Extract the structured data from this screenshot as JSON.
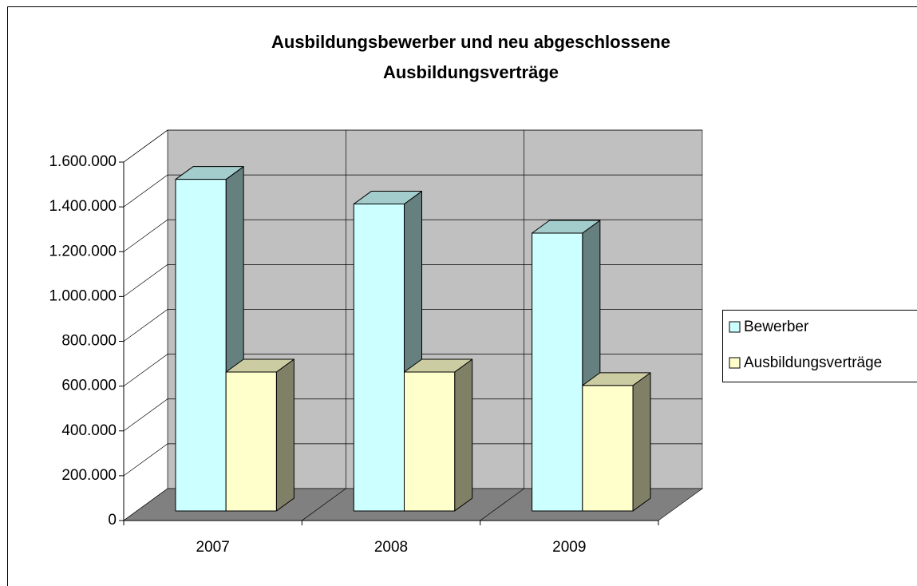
{
  "chart_data": {
    "type": "bar3d",
    "title": "Ausbildungsbewerber und neu abgeschlossene Ausbildungsverträge",
    "categories": [
      "2007",
      "2008",
      "2009"
    ],
    "series": [
      {
        "name": "Bewerber",
        "color": "#ccffff",
        "values": [
          1480000,
          1370000,
          1240000
        ]
      },
      {
        "name": "Ausbildungsverträge",
        "color": "#ffffcc",
        "values": [
          620000,
          620000,
          560000
        ]
      }
    ],
    "ylim": [
      0,
      1600000
    ],
    "yticks": [
      0,
      {
        "value": 200000,
        "label": "200.000"
      },
      {
        "value": 400000,
        "label": "400.000"
      },
      {
        "value": 600000,
        "label": "600.000"
      },
      {
        "value": 800000,
        "label": "800.000"
      },
      {
        "value": 1000000,
        "label": "1.000.000"
      },
      {
        "value": 1200000,
        "label": "1.200.000"
      },
      {
        "value": 1400000,
        "label": "1.400.000"
      },
      {
        "value": 1600000,
        "label": "1.600.000"
      }
    ],
    "grid": true,
    "legend": "right"
  }
}
